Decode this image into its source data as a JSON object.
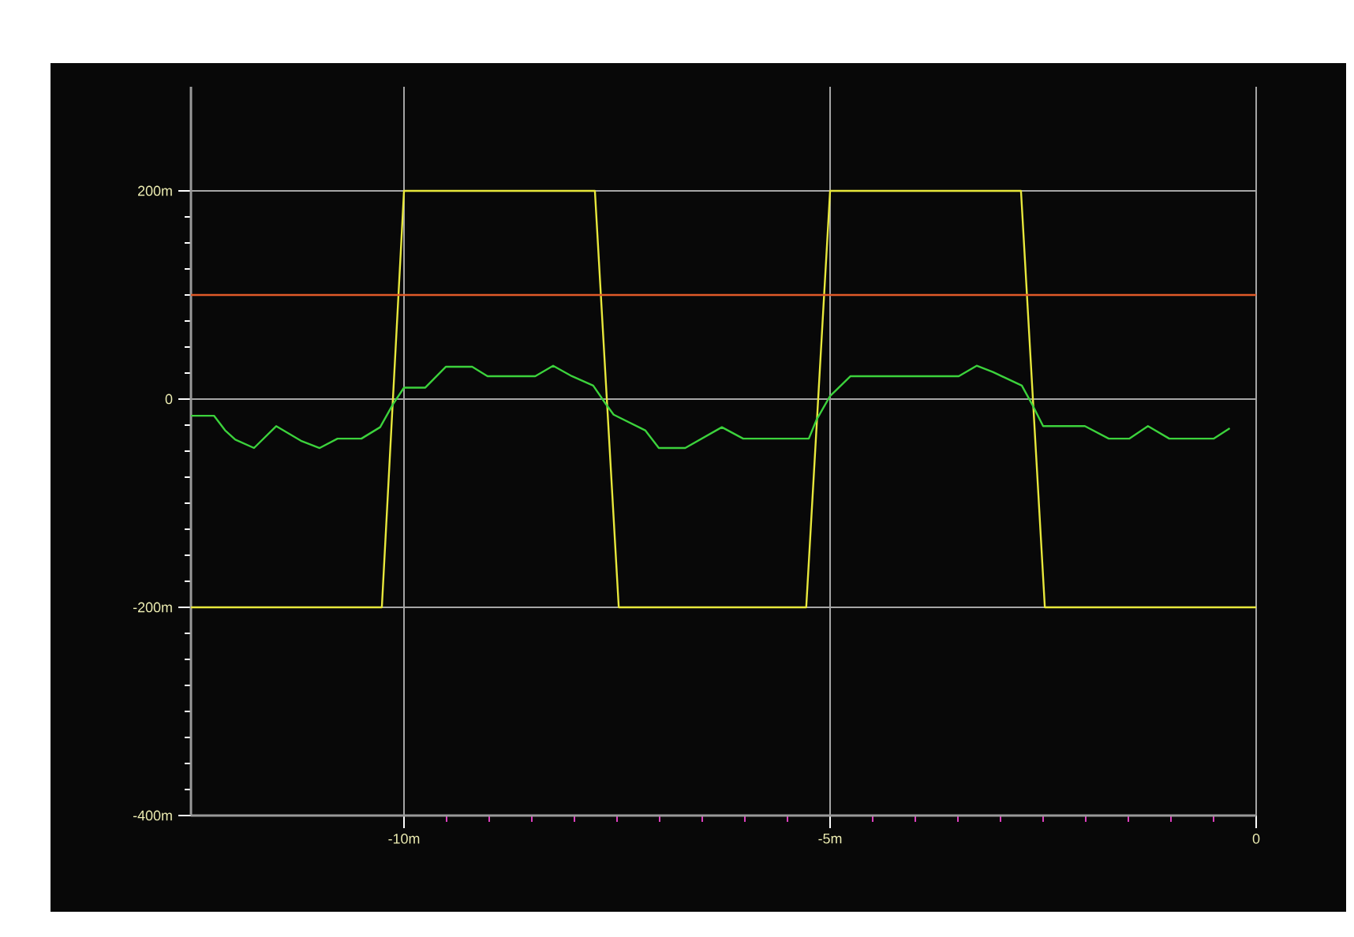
{
  "chart_data": {
    "type": "line",
    "xlim": [
      -12.5,
      0
    ],
    "ylim": [
      -400,
      300
    ],
    "xticks": [
      {
        "value": -10,
        "label": "-10m"
      },
      {
        "value": -5,
        "label": "-5m"
      },
      0
    ],
    "yticks": [
      {
        "value": -400,
        "label": "-400m"
      },
      {
        "value": -200,
        "label": "-200m"
      },
      0,
      {
        "value": 200,
        "label": "200m"
      }
    ],
    "grid": true,
    "marker": "none",
    "line_style": "solid",
    "ref_lines": [
      {
        "axis": "y",
        "value": 100,
        "color": "#e05a28"
      }
    ],
    "series": [
      {
        "color": "#e8e83c",
        "x": [
          -12.5,
          -10.26,
          -10.0,
          -7.76,
          -7.48,
          -5.28,
          -5.0,
          -2.76,
          -2.48,
          0
        ],
        "values": [
          -200,
          -200,
          200,
          200,
          -200,
          -200,
          200,
          200,
          -200,
          -200
        ]
      },
      {
        "color": "#3cd23c",
        "x": [
          -12.5,
          -12.23,
          -12.1,
          -11.98,
          -11.76,
          -11.5,
          -11.21,
          -10.99,
          -10.78,
          -10.5,
          -10.28,
          -10.13,
          -10.0,
          -9.75,
          -9.51,
          -9.2,
          -9.02,
          -8.46,
          -8.25,
          -8.03,
          -7.78,
          -7.63,
          -7.54,
          -7.17,
          -7.01,
          -6.7,
          -6.27,
          -6.02,
          -5.25,
          -5.16,
          -5.0,
          -4.76,
          -3.49,
          -3.28,
          -3.09,
          -2.75,
          -2.63,
          -2.5,
          -2.01,
          -1.73,
          -1.49,
          -1.27,
          -1.02,
          -0.5,
          -0.31
        ],
        "values": [
          -16,
          -16,
          -30,
          -39,
          -47,
          -26,
          -40,
          -47,
          -38,
          -38,
          -27,
          -5,
          11,
          11,
          31,
          31,
          22,
          22,
          32,
          22,
          13,
          -5,
          -15,
          -30,
          -47,
          -47,
          -27,
          -38,
          -38,
          -20,
          3,
          22,
          22,
          32,
          26,
          13,
          -5,
          -26,
          -26,
          -38,
          -38,
          -26,
          -38,
          -38,
          -28
        ]
      }
    ]
  }
}
